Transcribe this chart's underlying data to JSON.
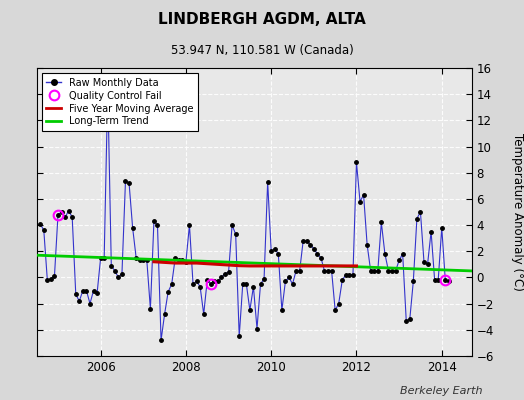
{
  "title": "LINDBERGH AGDM, ALTA",
  "subtitle": "53.947 N, 110.581 W (Canada)",
  "ylabel": "Temperature Anomaly (°C)",
  "watermark": "Berkeley Earth",
  "ylim": [
    -6,
    16
  ],
  "yticks": [
    -6,
    -4,
    -2,
    0,
    2,
    4,
    6,
    8,
    10,
    12,
    14,
    16
  ],
  "xlim_start": 2004.5,
  "xlim_end": 2014.7,
  "xticks": [
    2006,
    2008,
    2010,
    2012,
    2014
  ],
  "bg_color": "#d8d8d8",
  "plot_bg_color": "#e8e8e8",
  "raw_color": "#3333cc",
  "raw_marker_color": "#000000",
  "qc_color": "#ff00ff",
  "ma_color": "#cc0000",
  "trend_color": "#00cc00",
  "raw_data": [
    [
      2004.583,
      4.1
    ],
    [
      2004.667,
      3.6
    ],
    [
      2004.75,
      -0.2
    ],
    [
      2004.833,
      -0.1
    ],
    [
      2004.917,
      0.1
    ],
    [
      2005.0,
      4.8
    ],
    [
      2005.083,
      5.0
    ],
    [
      2005.167,
      4.6
    ],
    [
      2005.25,
      5.1
    ],
    [
      2005.333,
      4.6
    ],
    [
      2005.417,
      -1.3
    ],
    [
      2005.5,
      -1.8
    ],
    [
      2005.583,
      -1.0
    ],
    [
      2005.667,
      -1.0
    ],
    [
      2005.75,
      -2.0
    ],
    [
      2005.833,
      -1.0
    ],
    [
      2005.917,
      -1.2
    ],
    [
      2006.0,
      1.5
    ],
    [
      2006.083,
      1.5
    ],
    [
      2006.167,
      14.5
    ],
    [
      2006.25,
      0.9
    ],
    [
      2006.333,
      0.5
    ],
    [
      2006.417,
      0.0
    ],
    [
      2006.5,
      0.3
    ],
    [
      2006.583,
      7.4
    ],
    [
      2006.667,
      7.2
    ],
    [
      2006.75,
      3.8
    ],
    [
      2006.833,
      1.5
    ],
    [
      2006.917,
      1.3
    ],
    [
      2007.0,
      1.3
    ],
    [
      2007.083,
      1.3
    ],
    [
      2007.167,
      -2.4
    ],
    [
      2007.25,
      4.3
    ],
    [
      2007.333,
      4.0
    ],
    [
      2007.417,
      -4.8
    ],
    [
      2007.5,
      -2.8
    ],
    [
      2007.583,
      -1.1
    ],
    [
      2007.667,
      -0.5
    ],
    [
      2007.75,
      1.5
    ],
    [
      2007.833,
      1.3
    ],
    [
      2007.917,
      1.3
    ],
    [
      2008.0,
      1.2
    ],
    [
      2008.083,
      4.0
    ],
    [
      2008.167,
      -0.5
    ],
    [
      2008.25,
      -0.3
    ],
    [
      2008.333,
      -0.7
    ],
    [
      2008.417,
      -2.8
    ],
    [
      2008.5,
      -0.2
    ],
    [
      2008.583,
      -0.5
    ],
    [
      2008.667,
      -0.3
    ],
    [
      2008.75,
      -0.3
    ],
    [
      2008.833,
      0.0
    ],
    [
      2008.917,
      0.3
    ],
    [
      2009.0,
      0.4
    ],
    [
      2009.083,
      4.0
    ],
    [
      2009.167,
      3.3
    ],
    [
      2009.25,
      -4.5
    ],
    [
      2009.333,
      -0.5
    ],
    [
      2009.417,
      -0.5
    ],
    [
      2009.5,
      -2.5
    ],
    [
      2009.583,
      -0.7
    ],
    [
      2009.667,
      -3.9
    ],
    [
      2009.75,
      -0.5
    ],
    [
      2009.833,
      -0.1
    ],
    [
      2009.917,
      7.3
    ],
    [
      2010.0,
      2.0
    ],
    [
      2010.083,
      2.2
    ],
    [
      2010.167,
      1.8
    ],
    [
      2010.25,
      -2.5
    ],
    [
      2010.333,
      -0.3
    ],
    [
      2010.417,
      0.0
    ],
    [
      2010.5,
      -0.5
    ],
    [
      2010.583,
      0.5
    ],
    [
      2010.667,
      0.5
    ],
    [
      2010.75,
      2.8
    ],
    [
      2010.833,
      2.8
    ],
    [
      2010.917,
      2.5
    ],
    [
      2011.0,
      2.2
    ],
    [
      2011.083,
      1.8
    ],
    [
      2011.167,
      1.5
    ],
    [
      2011.25,
      0.5
    ],
    [
      2011.333,
      0.5
    ],
    [
      2011.417,
      0.5
    ],
    [
      2011.5,
      -2.5
    ],
    [
      2011.583,
      -2.0
    ],
    [
      2011.667,
      -0.2
    ],
    [
      2011.75,
      0.2
    ],
    [
      2011.833,
      0.2
    ],
    [
      2011.917,
      0.2
    ],
    [
      2012.0,
      8.8
    ],
    [
      2012.083,
      5.8
    ],
    [
      2012.167,
      6.3
    ],
    [
      2012.25,
      2.5
    ],
    [
      2012.333,
      0.5
    ],
    [
      2012.417,
      0.5
    ],
    [
      2012.5,
      0.5
    ],
    [
      2012.583,
      4.2
    ],
    [
      2012.667,
      1.8
    ],
    [
      2012.75,
      0.5
    ],
    [
      2012.833,
      0.5
    ],
    [
      2012.917,
      0.5
    ],
    [
      2013.0,
      1.3
    ],
    [
      2013.083,
      1.8
    ],
    [
      2013.167,
      -3.3
    ],
    [
      2013.25,
      -3.2
    ],
    [
      2013.333,
      -0.3
    ],
    [
      2013.417,
      4.5
    ],
    [
      2013.5,
      5.0
    ],
    [
      2013.583,
      1.2
    ],
    [
      2013.667,
      1.0
    ],
    [
      2013.75,
      3.5
    ],
    [
      2013.833,
      -0.2
    ],
    [
      2013.917,
      -0.2
    ],
    [
      2014.0,
      3.8
    ],
    [
      2014.083,
      -0.2
    ],
    [
      2014.167,
      -0.3
    ]
  ],
  "qc_points": [
    [
      2005.0,
      4.8
    ],
    [
      2008.583,
      -0.5
    ],
    [
      2014.083,
      -0.2
    ]
  ],
  "ma_data": [
    [
      2007.25,
      1.2
    ],
    [
      2007.5,
      1.15
    ],
    [
      2007.75,
      1.1
    ],
    [
      2008.0,
      1.1
    ],
    [
      2008.25,
      1.1
    ],
    [
      2008.5,
      1.05
    ],
    [
      2008.75,
      1.0
    ],
    [
      2009.0,
      0.95
    ],
    [
      2009.25,
      0.9
    ],
    [
      2009.5,
      0.88
    ],
    [
      2009.75,
      0.88
    ],
    [
      2010.0,
      0.88
    ],
    [
      2010.25,
      0.88
    ],
    [
      2010.5,
      0.88
    ],
    [
      2010.75,
      0.88
    ],
    [
      2011.0,
      0.88
    ],
    [
      2011.25,
      0.88
    ],
    [
      2011.5,
      0.88
    ],
    [
      2011.75,
      0.88
    ],
    [
      2012.0,
      0.88
    ]
  ],
  "trend_data": [
    [
      2004.5,
      1.7
    ],
    [
      2014.7,
      0.5
    ]
  ]
}
